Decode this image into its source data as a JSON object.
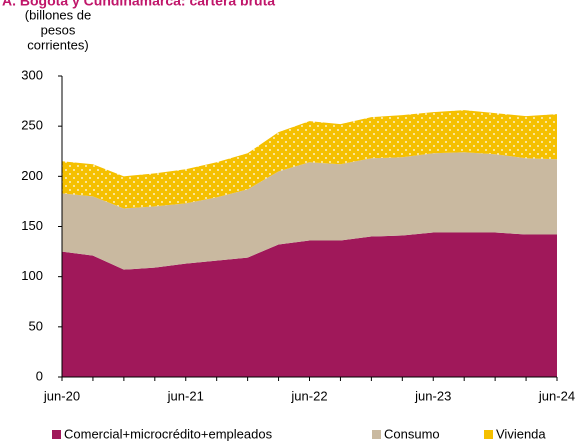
{
  "chart_data": {
    "type": "stacked_area",
    "title": "A. Bogotá y Cundinamarca: cartera bruta",
    "ylabel": [
      "(billones de",
      "pesos",
      "corrientes)"
    ],
    "categories": [
      "jun-20",
      null,
      null,
      null,
      "jun-21",
      null,
      null,
      null,
      "jun-22",
      null,
      null,
      null,
      "jun-23",
      null,
      null,
      null,
      "jun-24"
    ],
    "series": [
      {
        "name": "Comercial+microcrédito+empleados",
        "color": "#a0185a",
        "values": [
          125,
          121,
          107,
          109,
          113,
          116,
          119,
          132,
          136,
          136,
          140,
          141,
          144,
          144,
          144,
          142,
          142
        ]
      },
      {
        "name": "Consumo",
        "color": "#c9b9a0",
        "values": [
          58,
          59,
          61,
          61,
          60,
          63,
          68,
          73,
          78,
          76,
          78,
          78,
          79,
          80,
          78,
          76,
          75
        ]
      },
      {
        "name": "Vivienda",
        "color": "#f5c000",
        "values": [
          32,
          32,
          32,
          33,
          34,
          35,
          36,
          39,
          41,
          40,
          41,
          42,
          41,
          42,
          41,
          42,
          45
        ]
      }
    ],
    "ylim": [
      0,
      300
    ],
    "yticks": [
      0,
      50,
      100,
      150,
      200,
      250,
      300
    ]
  }
}
